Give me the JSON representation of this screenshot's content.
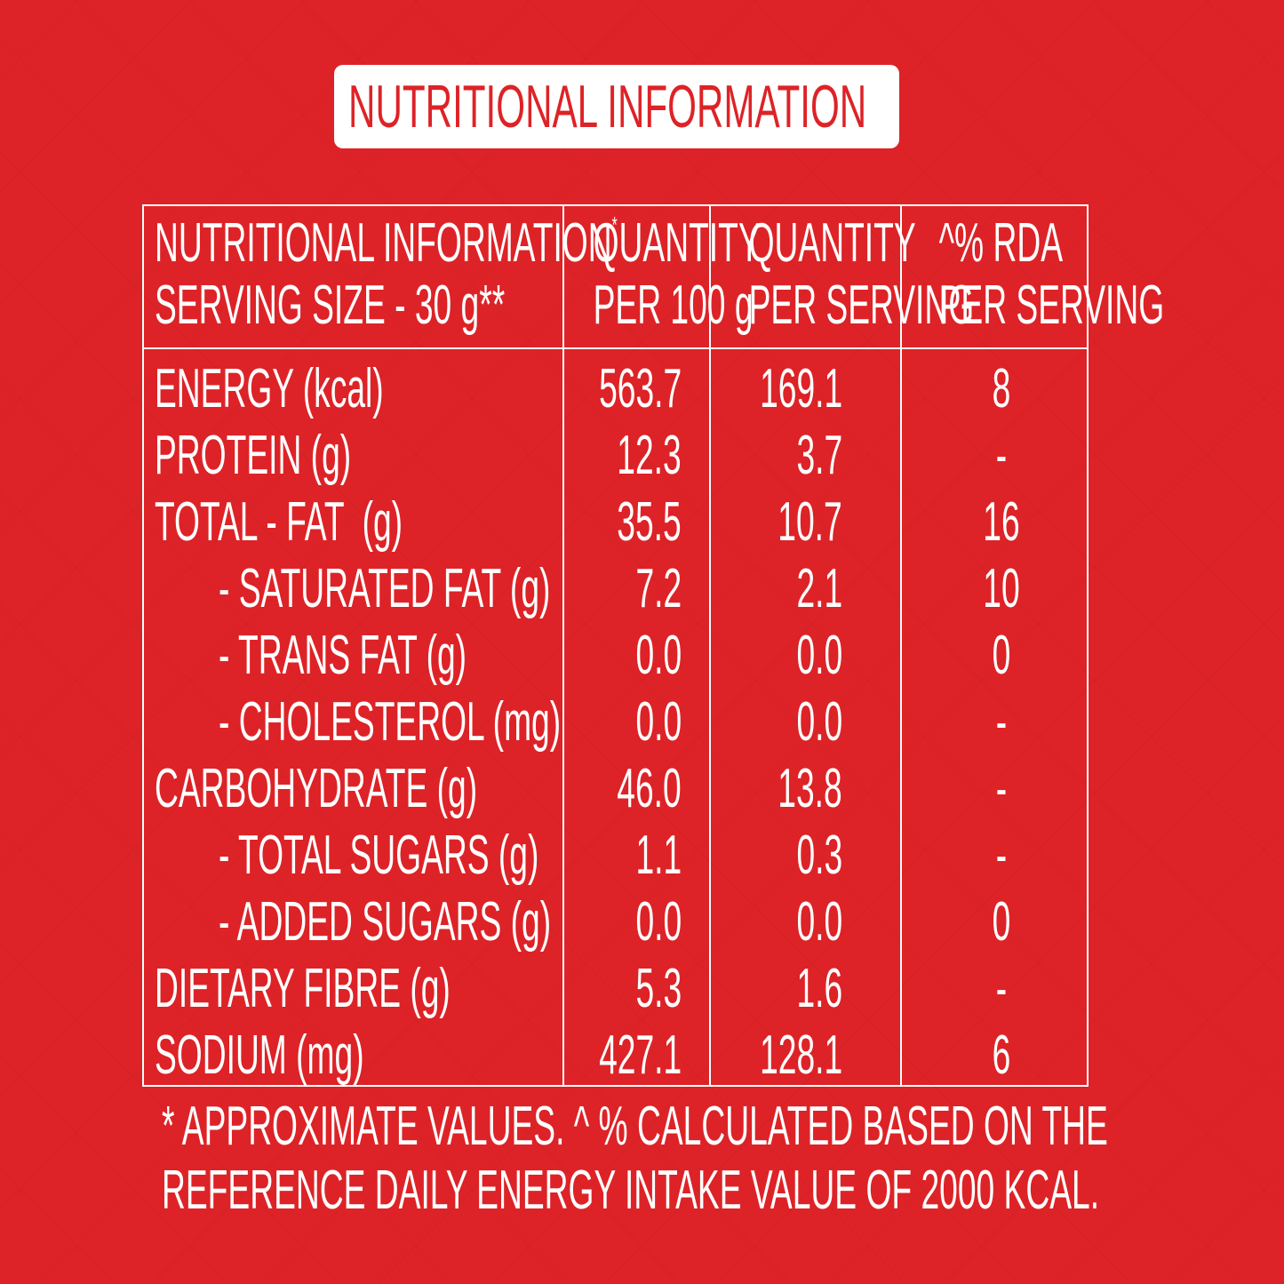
{
  "title": "NUTRITIONAL INFORMATION",
  "table": {
    "header": {
      "col1_line1": "NUTRITIONAL INFORMATION",
      "col1_star": "*",
      "col1_line2": "SERVING SIZE - 30 g**",
      "col2_line1": "QUANTITY",
      "col2_line2": "PER 100 g",
      "col3_line1": "QUANTITY",
      "col3_line2": "PER SERVING",
      "col4_line1": "^% RDA",
      "col4_line2": "PER SERVING"
    },
    "rows": [
      {
        "name": "ENERGY (kcal)",
        "per100": "563.7",
        "per_serving": "169.1",
        "rda": "8"
      },
      {
        "name": "PROTEIN (g)",
        "per100": "12.3",
        "per_serving": "3.7",
        "rda": "-"
      },
      {
        "name": "TOTAL - FAT  (g)",
        "per100": "35.5",
        "per_serving": "10.7",
        "rda": "16"
      },
      {
        "name": "- SATURATED FAT (g)",
        "per100": "7.2",
        "per_serving": "2.1",
        "rda": "10"
      },
      {
        "name": "- TRANS FAT (g)",
        "per100": "0.0",
        "per_serving": "0.0",
        "rda": "0"
      },
      {
        "name": "- CHOLESTEROL (mg)",
        "per100": "0.0",
        "per_serving": "0.0",
        "rda": "-"
      },
      {
        "name": "CARBOHYDRATE (g)",
        "per100": "46.0",
        "per_serving": "13.8",
        "rda": "-"
      },
      {
        "name": "- TOTAL SUGARS (g)",
        "per100": "1.1",
        "per_serving": "0.3",
        "rda": "-"
      },
      {
        "name": "- ADDED SUGARS (g)",
        "per100": "0.0",
        "per_serving": "0.0",
        "rda": "0"
      },
      {
        "name": "DIETARY FIBRE (g)",
        "per100": "5.3",
        "per_serving": "1.6",
        "rda": "-"
      },
      {
        "name": "SODIUM (mg)",
        "per100": "427.1",
        "per_serving": "128.1",
        "rda": "6"
      }
    ]
  },
  "footnote": {
    "line1": "* APPROXIMATE VALUES. ^ % CALCULATED BASED ON THE",
    "line2": "REFERENCE DAILY ENERGY INTAKE VALUE OF 2000 KCAL."
  },
  "colors": {
    "background": "#dd2327",
    "foreground": "#ffffff"
  }
}
